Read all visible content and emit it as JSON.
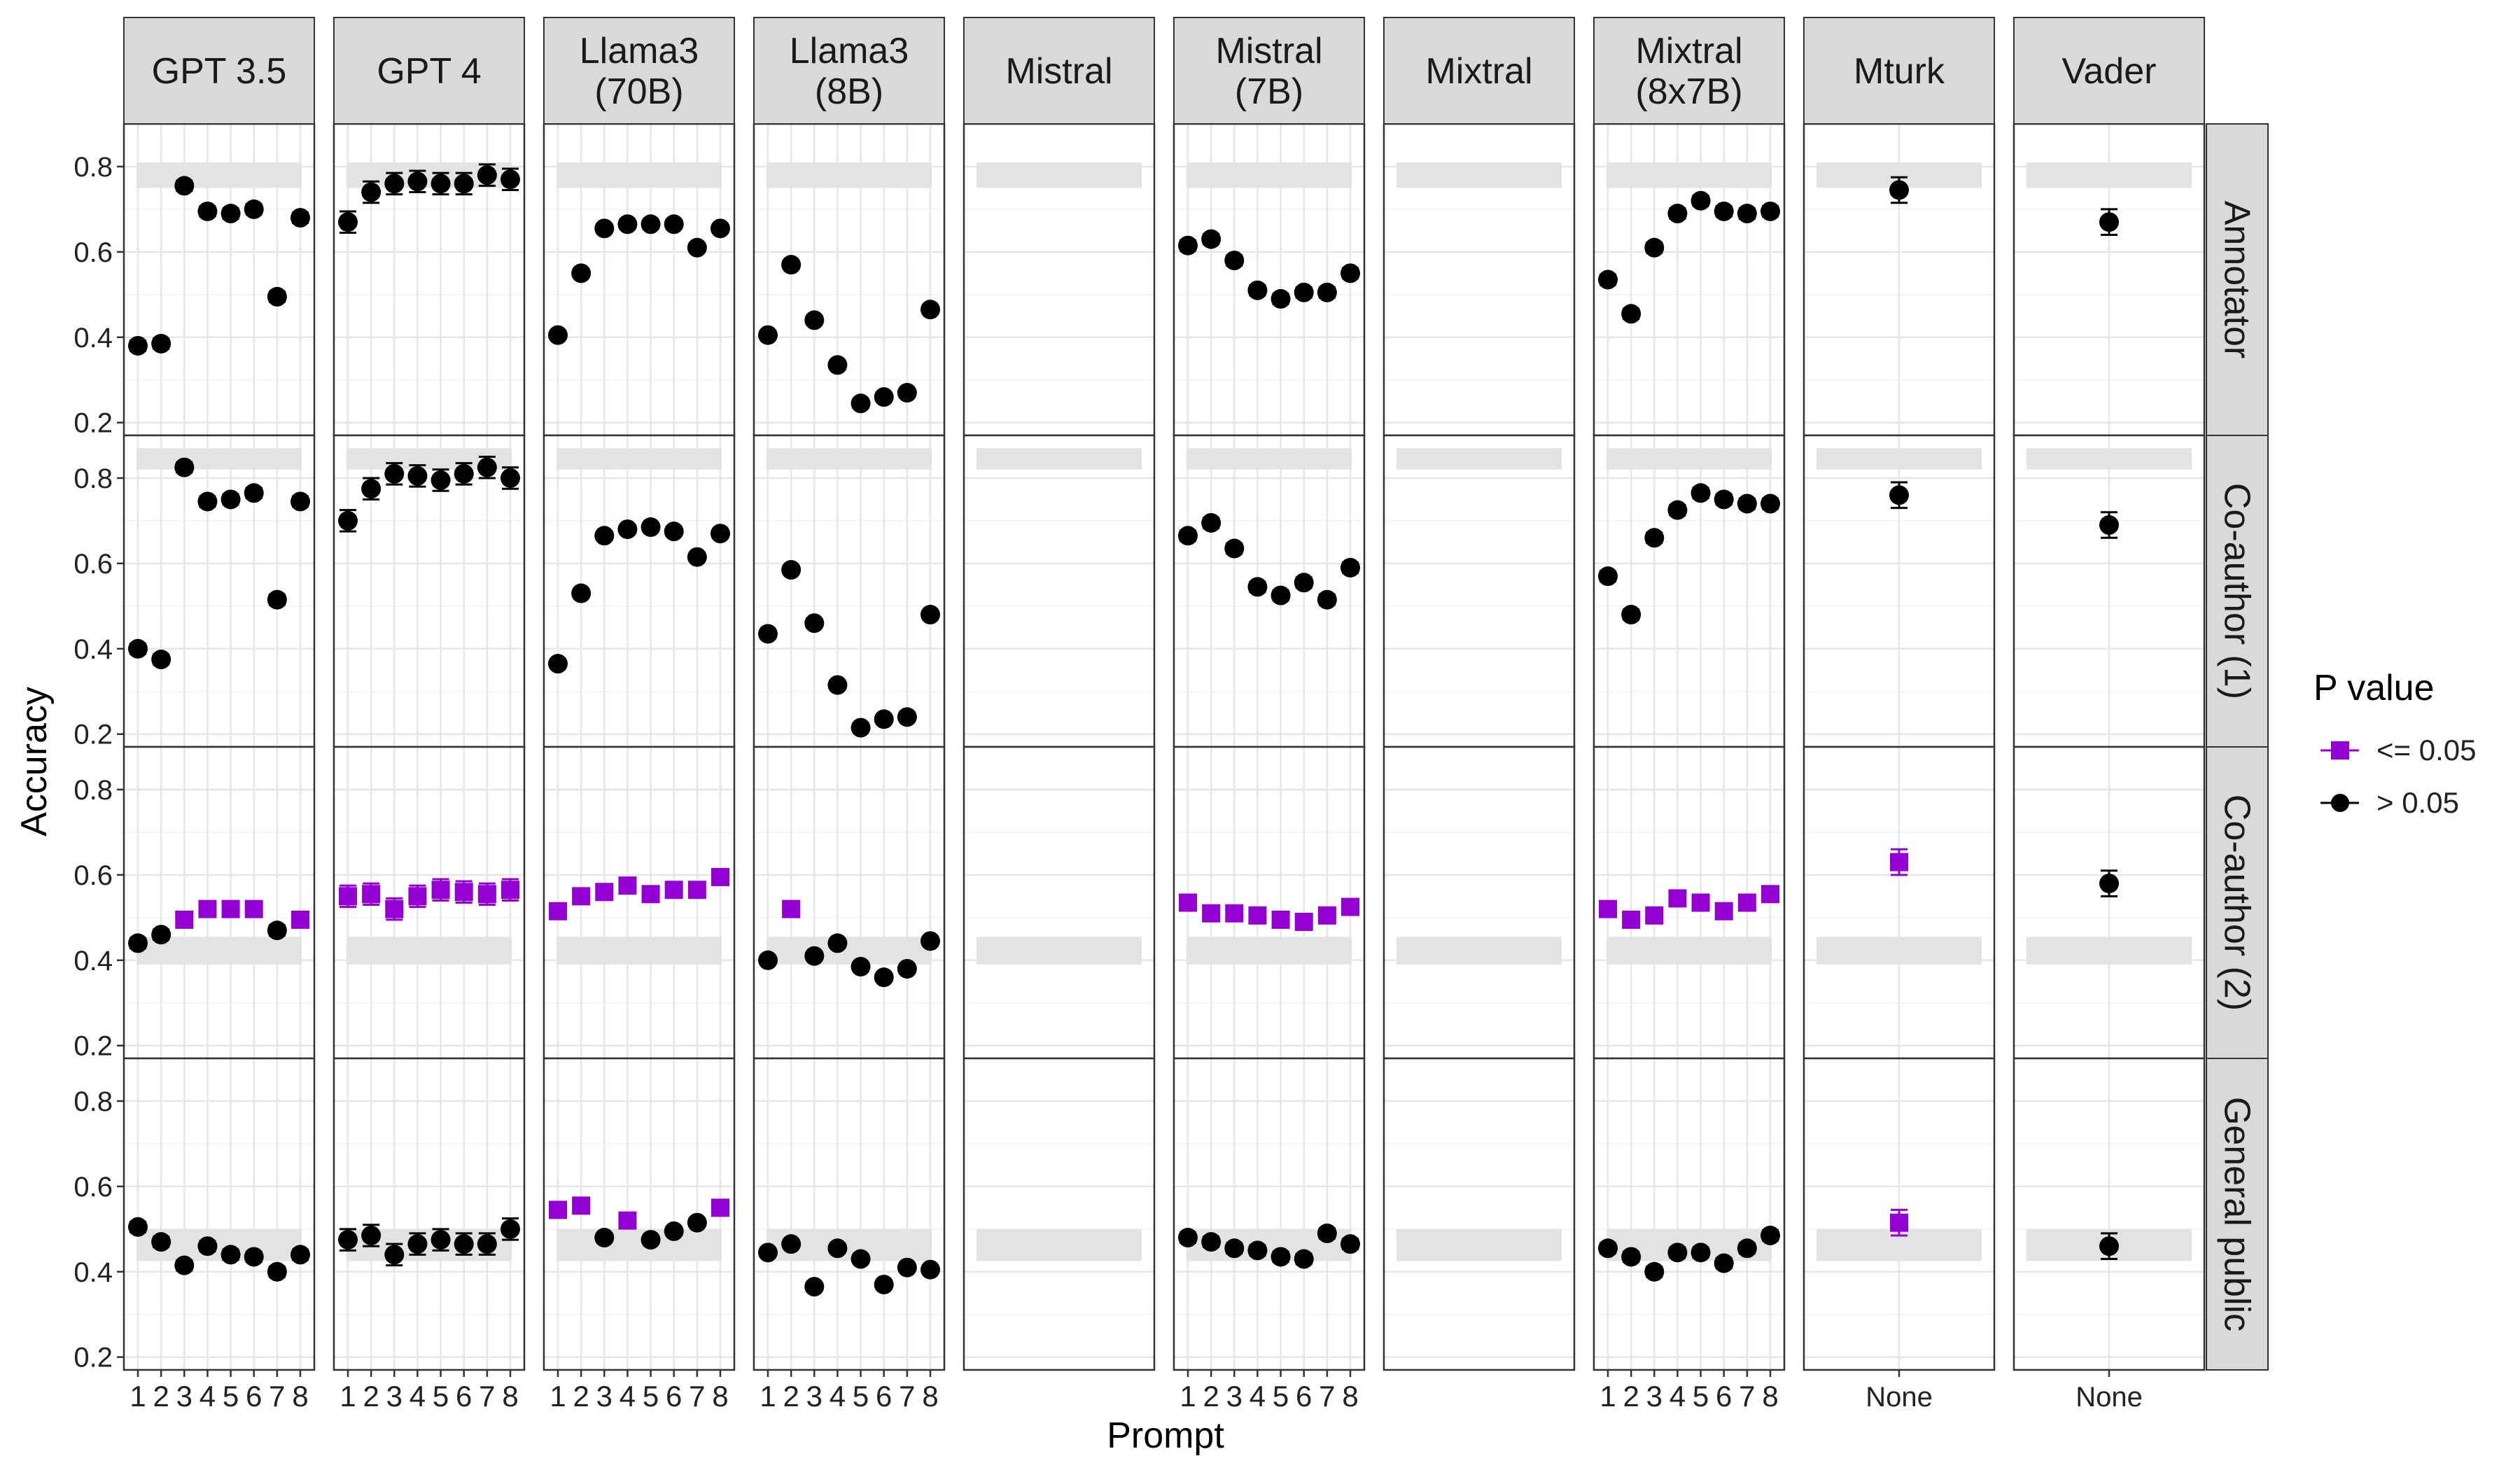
{
  "chart_data": {
    "type": "scatter",
    "xlabel": "Prompt",
    "ylabel": "Accuracy",
    "ylim": [
      0.17,
      0.9
    ],
    "yticks": [
      0.2,
      0.4,
      0.6,
      0.8
    ],
    "grid": true,
    "legend": {
      "title": "P value",
      "placement": "right",
      "items": [
        {
          "label": "<= 0.05",
          "shape": "square",
          "color": "#9400D3"
        },
        {
          "label": "> 0.05",
          "shape": "circle",
          "color": "#000000"
        }
      ]
    },
    "colors": {
      "significant": "#9400D3",
      "not_significant": "#000000",
      "strip": "#D9D9D9",
      "band": "#E3E3E3"
    },
    "columns": [
      {
        "label": "GPT 3.5",
        "x_ticks": [
          "1",
          "2",
          "3",
          "4",
          "5",
          "6",
          "7",
          "8"
        ]
      },
      {
        "label": "GPT 4",
        "x_ticks": [
          "1",
          "2",
          "3",
          "4",
          "5",
          "6",
          "7",
          "8"
        ]
      },
      {
        "label": "Llama3\n(70B)",
        "x_ticks": [
          "1",
          "2",
          "3",
          "4",
          "5",
          "6",
          "7",
          "8"
        ]
      },
      {
        "label": "Llama3\n(8B)",
        "x_ticks": [
          "1",
          "2",
          "3",
          "4",
          "5",
          "6",
          "7",
          "8"
        ]
      },
      {
        "label": "Mistral",
        "x_ticks": []
      },
      {
        "label": "Mistral\n(7B)",
        "x_ticks": [
          "1",
          "2",
          "3",
          "4",
          "5",
          "6",
          "7",
          "8"
        ]
      },
      {
        "label": "Mixtral",
        "x_ticks": []
      },
      {
        "label": "Mixtral\n(8x7B)",
        "x_ticks": [
          "1",
          "2",
          "3",
          "4",
          "5",
          "6",
          "7",
          "8"
        ]
      },
      {
        "label": "Mturk",
        "x_ticks": [
          "None"
        ]
      },
      {
        "label": "Vader",
        "x_ticks": [
          "None"
        ]
      }
    ],
    "rows": [
      {
        "label": "Annotator",
        "band": [
          0.75,
          0.81
        ]
      },
      {
        "label": "Co-author (1)",
        "band": [
          0.82,
          0.87
        ]
      },
      {
        "label": "Co-author (2)",
        "band": [
          0.39,
          0.455
        ]
      },
      {
        "label": "General public",
        "band": [
          0.425,
          0.5
        ]
      }
    ],
    "panels": [
      [
        {
          "values": [
            0.38,
            0.385,
            0.755,
            0.695,
            0.69,
            0.7,
            0.495,
            0.68
          ],
          "err": [
            0.012,
            0.012,
            0.012,
            0.012,
            0.012,
            0.012,
            0.012,
            0.012
          ],
          "sig": [
            0,
            0,
            0,
            0,
            0,
            0,
            0,
            0
          ]
        },
        {
          "values": [
            0.67,
            0.74,
            0.76,
            0.765,
            0.76,
            0.76,
            0.78,
            0.77
          ],
          "err": [
            0.025,
            0.025,
            0.025,
            0.025,
            0.025,
            0.025,
            0.025,
            0.025
          ],
          "sig": [
            0,
            0,
            0,
            0,
            0,
            0,
            0,
            0
          ]
        },
        {
          "values": [
            0.405,
            0.55,
            0.655,
            0.665,
            0.665,
            0.665,
            0.61,
            0.655
          ],
          "err": [
            0.01,
            0.01,
            0.01,
            0.01,
            0.01,
            0.01,
            0.01,
            0.01
          ],
          "sig": [
            0,
            0,
            0,
            0,
            0,
            0,
            0,
            0
          ]
        },
        {
          "values": [
            0.405,
            0.57,
            0.44,
            0.335,
            0.245,
            0.26,
            0.27,
            0.465
          ],
          "err": [
            0.01,
            0.01,
            0.01,
            0.01,
            0.01,
            0.01,
            0.01,
            0.01
          ],
          "sig": [
            0,
            0,
            0,
            0,
            0,
            0,
            0,
            0
          ]
        },
        null,
        {
          "values": [
            0.615,
            0.63,
            0.58,
            0.51,
            0.49,
            0.505,
            0.505,
            0.55
          ],
          "err": [
            0.012,
            0.012,
            0.012,
            0.012,
            0.012,
            0.012,
            0.012,
            0.012
          ],
          "sig": [
            0,
            0,
            0,
            0,
            0,
            0,
            0,
            0
          ]
        },
        null,
        {
          "values": [
            0.535,
            0.455,
            0.61,
            0.69,
            0.72,
            0.695,
            0.69,
            0.695
          ],
          "err": [
            0.012,
            0.012,
            0.012,
            0.012,
            0.012,
            0.012,
            0.012,
            0.012
          ],
          "sig": [
            0,
            0,
            0,
            0,
            0,
            0,
            0,
            0
          ]
        },
        {
          "values": [
            0.745
          ],
          "err": [
            0.03
          ],
          "sig": [
            0
          ]
        },
        {
          "values": [
            0.67
          ],
          "err": [
            0.03
          ],
          "sig": [
            0
          ]
        }
      ],
      [
        {
          "values": [
            0.4,
            0.375,
            0.825,
            0.745,
            0.75,
            0.765,
            0.515,
            0.745
          ],
          "err": [
            0.012,
            0.012,
            0.012,
            0.012,
            0.012,
            0.012,
            0.012,
            0.012
          ],
          "sig": [
            0,
            0,
            0,
            0,
            0,
            0,
            0,
            0
          ]
        },
        {
          "values": [
            0.7,
            0.775,
            0.81,
            0.805,
            0.795,
            0.81,
            0.825,
            0.8
          ],
          "err": [
            0.025,
            0.025,
            0.025,
            0.025,
            0.025,
            0.025,
            0.025,
            0.025
          ],
          "sig": [
            0,
            0,
            0,
            0,
            0,
            0,
            0,
            0
          ]
        },
        {
          "values": [
            0.365,
            0.53,
            0.665,
            0.68,
            0.685,
            0.675,
            0.615,
            0.67
          ],
          "err": [
            0.01,
            0.01,
            0.01,
            0.01,
            0.01,
            0.01,
            0.01,
            0.01
          ],
          "sig": [
            0,
            0,
            0,
            0,
            0,
            0,
            0,
            0
          ]
        },
        {
          "values": [
            0.435,
            0.585,
            0.46,
            0.315,
            0.215,
            0.235,
            0.24,
            0.48
          ],
          "err": [
            0.01,
            0.01,
            0.01,
            0.01,
            0.01,
            0.01,
            0.01,
            0.01
          ],
          "sig": [
            0,
            0,
            0,
            0,
            0,
            0,
            0,
            0
          ]
        },
        null,
        {
          "values": [
            0.665,
            0.695,
            0.635,
            0.545,
            0.525,
            0.555,
            0.515,
            0.59
          ],
          "err": [
            0.012,
            0.012,
            0.012,
            0.012,
            0.012,
            0.012,
            0.012,
            0.012
          ],
          "sig": [
            0,
            0,
            0,
            0,
            0,
            0,
            0,
            0
          ]
        },
        null,
        {
          "values": [
            0.57,
            0.48,
            0.66,
            0.725,
            0.765,
            0.75,
            0.74,
            0.74
          ],
          "err": [
            0.012,
            0.012,
            0.012,
            0.012,
            0.012,
            0.012,
            0.012,
            0.012
          ],
          "sig": [
            0,
            0,
            0,
            0,
            0,
            0,
            0,
            0
          ]
        },
        {
          "values": [
            0.76
          ],
          "err": [
            0.03
          ],
          "sig": [
            0
          ]
        },
        {
          "values": [
            0.69
          ],
          "err": [
            0.03
          ],
          "sig": [
            0
          ]
        }
      ],
      [
        {
          "values": [
            0.44,
            0.46,
            0.495,
            0.52,
            0.52,
            0.52,
            0.47,
            0.495
          ],
          "err": [
            0.012,
            0.012,
            0.012,
            0.012,
            0.012,
            0.012,
            0.012,
            0.012
          ],
          "sig": [
            0,
            0,
            1,
            1,
            1,
            1,
            0,
            1
          ]
        },
        {
          "values": [
            0.55,
            0.555,
            0.52,
            0.55,
            0.565,
            0.56,
            0.555,
            0.565
          ],
          "err": [
            0.025,
            0.025,
            0.025,
            0.025,
            0.025,
            0.025,
            0.025,
            0.025
          ],
          "sig": [
            1,
            1,
            1,
            1,
            1,
            1,
            1,
            1
          ]
        },
        {
          "values": [
            0.515,
            0.55,
            0.56,
            0.575,
            0.555,
            0.565,
            0.565,
            0.595
          ],
          "err": [
            0.01,
            0.01,
            0.01,
            0.01,
            0.01,
            0.01,
            0.01,
            0.01
          ],
          "sig": [
            1,
            1,
            1,
            1,
            1,
            1,
            1,
            1
          ]
        },
        {
          "values": [
            0.4,
            0.52,
            0.41,
            0.44,
            0.385,
            0.36,
            0.38,
            0.445
          ],
          "err": [
            0.01,
            0.01,
            0.01,
            0.01,
            0.01,
            0.01,
            0.01,
            0.01
          ],
          "sig": [
            0,
            1,
            0,
            0,
            0,
            0,
            0,
            0
          ]
        },
        null,
        {
          "values": [
            0.535,
            0.51,
            0.51,
            0.505,
            0.495,
            0.49,
            0.505,
            0.525
          ],
          "err": [
            0.012,
            0.012,
            0.012,
            0.012,
            0.012,
            0.012,
            0.012,
            0.012
          ],
          "sig": [
            1,
            1,
            1,
            1,
            1,
            1,
            1,
            1
          ]
        },
        null,
        {
          "values": [
            0.52,
            0.495,
            0.505,
            0.545,
            0.535,
            0.515,
            0.535,
            0.555
          ],
          "err": [
            0.012,
            0.012,
            0.012,
            0.012,
            0.012,
            0.012,
            0.012,
            0.012
          ],
          "sig": [
            1,
            1,
            1,
            1,
            1,
            1,
            1,
            1
          ]
        },
        {
          "values": [
            0.63
          ],
          "err": [
            0.03
          ],
          "sig": [
            1
          ]
        },
        {
          "values": [
            0.58
          ],
          "err": [
            0.03
          ],
          "sig": [
            0
          ]
        }
      ],
      [
        {
          "values": [
            0.505,
            0.47,
            0.415,
            0.46,
            0.44,
            0.435,
            0.4,
            0.44
          ],
          "err": [
            0.012,
            0.012,
            0.012,
            0.012,
            0.012,
            0.012,
            0.012,
            0.012
          ],
          "sig": [
            0,
            0,
            0,
            0,
            0,
            0,
            0,
            0
          ]
        },
        {
          "values": [
            0.475,
            0.485,
            0.44,
            0.465,
            0.475,
            0.465,
            0.465,
            0.5
          ],
          "err": [
            0.025,
            0.025,
            0.025,
            0.025,
            0.025,
            0.025,
            0.025,
            0.025
          ],
          "sig": [
            0,
            0,
            0,
            0,
            0,
            0,
            0,
            0
          ]
        },
        {
          "values": [
            0.545,
            0.555,
            0.48,
            0.52,
            0.475,
            0.495,
            0.515,
            0.55
          ],
          "err": [
            0.01,
            0.01,
            0.01,
            0.01,
            0.01,
            0.01,
            0.01,
            0.01
          ],
          "sig": [
            1,
            1,
            0,
            1,
            0,
            0,
            0,
            1
          ]
        },
        {
          "values": [
            0.445,
            0.465,
            0.365,
            0.455,
            0.43,
            0.37,
            0.41,
            0.405
          ],
          "err": [
            0.01,
            0.01,
            0.01,
            0.01,
            0.01,
            0.01,
            0.01,
            0.01
          ],
          "sig": [
            0,
            0,
            0,
            0,
            0,
            0,
            0,
            0
          ]
        },
        null,
        {
          "values": [
            0.48,
            0.47,
            0.455,
            0.45,
            0.435,
            0.43,
            0.49,
            0.465
          ],
          "err": [
            0.012,
            0.012,
            0.012,
            0.012,
            0.012,
            0.012,
            0.012,
            0.012
          ],
          "sig": [
            0,
            0,
            0,
            0,
            0,
            0,
            0,
            0
          ]
        },
        null,
        {
          "values": [
            0.455,
            0.435,
            0.4,
            0.445,
            0.445,
            0.42,
            0.455,
            0.485
          ],
          "err": [
            0.012,
            0.012,
            0.012,
            0.012,
            0.012,
            0.012,
            0.012,
            0.012
          ],
          "sig": [
            0,
            0,
            0,
            0,
            0,
            0,
            0,
            0
          ]
        },
        {
          "values": [
            0.515
          ],
          "err": [
            0.03
          ],
          "sig": [
            1
          ]
        },
        {
          "values": [
            0.46
          ],
          "err": [
            0.03
          ],
          "sig": [
            0
          ]
        }
      ]
    ]
  }
}
